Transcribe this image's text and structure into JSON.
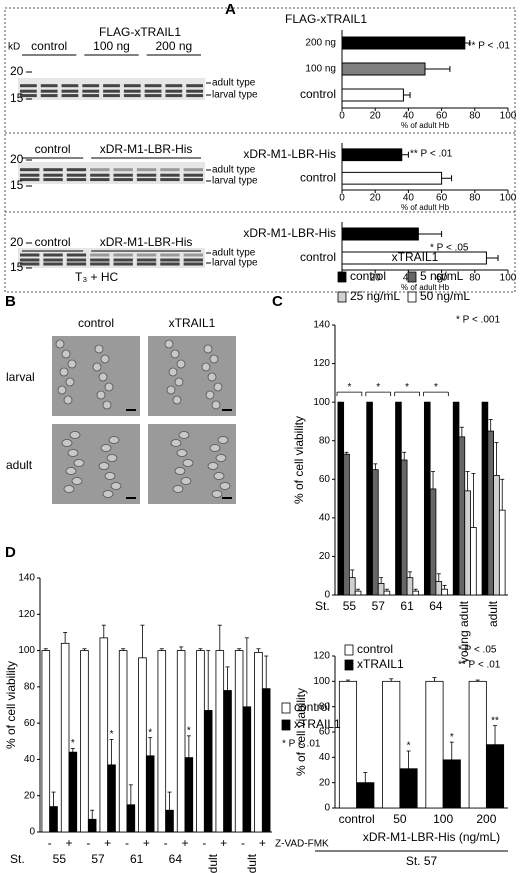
{
  "panel_labels": [
    "A",
    "B",
    "C",
    "D"
  ],
  "gels": [
    {
      "unit": "kD",
      "markers": [
        20,
        15
      ],
      "title": "FLAG-xTRAIL1",
      "lanes": [
        "control",
        "100 ng",
        "200 ng"
      ],
      "bands": [
        "adult type",
        "larval type"
      ]
    },
    {
      "markers": [
        20,
        15
      ],
      "lanes": [
        "control",
        "xDR-M1-LBR-His"
      ],
      "bands": [
        "adult type",
        "larval type"
      ]
    },
    {
      "markers": [
        20,
        15
      ],
      "lanes": [
        "control",
        "xDR-M1-LBR-His"
      ],
      "bands": [
        "adult type",
        "larval type"
      ],
      "condition": "T₃ + HC"
    }
  ],
  "micrographs": {
    "columns": [
      "control",
      "xTRAIL1"
    ],
    "rows": [
      "larval",
      "adult"
    ]
  },
  "chart_data": [
    {
      "type": "hbar",
      "title": "FLAG-xTRAIL1",
      "categories": [
        "control",
        "100 ng",
        "200 ng"
      ],
      "values": [
        37,
        50,
        74
      ],
      "errors": [
        4,
        15,
        3
      ],
      "colors": [
        "#ffffff",
        "#808080",
        "#000000"
      ],
      "xlim": [
        0,
        100
      ],
      "xticks": [
        0,
        20,
        40,
        60,
        80,
        100
      ],
      "xlabel": "% of adult Hb",
      "annotation": "** P < .01"
    },
    {
      "type": "hbar",
      "categories": [
        "control",
        "xDR-M1-LBR-His"
      ],
      "values": [
        60,
        36
      ],
      "errors": [
        6,
        4
      ],
      "colors": [
        "#ffffff",
        "#000000"
      ],
      "xlim": [
        0,
        100
      ],
      "xticks": [
        0,
        20,
        40,
        60,
        80,
        100
      ],
      "xlabel": "% of adult Hb",
      "annotation": "** P < .01"
    },
    {
      "type": "hbar",
      "categories": [
        "control",
        "xDR-M1-LBR-His"
      ],
      "values": [
        87,
        46
      ],
      "errors": [
        7,
        14
      ],
      "colors": [
        "#ffffff",
        "#000000"
      ],
      "xlim": [
        0,
        100
      ],
      "xticks": [
        0,
        20,
        40,
        60,
        80,
        100
      ],
      "xlabel": "% of adult Hb",
      "annotation": "* P < .05"
    },
    {
      "type": "bar",
      "title": "xTRAIL1",
      "categories": [
        "55",
        "57",
        "61",
        "64",
        "young adult",
        "adult"
      ],
      "category_prefix": "St.",
      "ylabel": "% of cell viability",
      "ylim": [
        0,
        140
      ],
      "yticks": [
        0,
        20,
        40,
        60,
        80,
        100,
        120,
        140
      ],
      "annotation": "* P < .001",
      "series": [
        {
          "name": "control",
          "color": "#000000",
          "values": [
            100,
            100,
            100,
            100,
            100,
            100
          ],
          "significance": [
            "*",
            "*",
            "*",
            "*",
            null,
            null
          ]
        },
        {
          "name": "5 ng/mL",
          "color": "#666666",
          "values": [
            73,
            65,
            70,
            55,
            82,
            85
          ],
          "errors": [
            1,
            3,
            4,
            9,
            5,
            6
          ]
        },
        {
          "name": "25 ng/mL",
          "color": "#d0d0d0",
          "values": [
            9,
            6,
            9,
            7,
            54,
            62
          ],
          "errors": [
            4,
            3,
            3,
            4,
            10,
            17
          ]
        },
        {
          "name": "50 ng/mL",
          "color": "#ffffff",
          "values": [
            2,
            2,
            2,
            3,
            35,
            44
          ],
          "errors": [
            1,
            1,
            1,
            2,
            28,
            16
          ]
        }
      ]
    },
    {
      "type": "bar",
      "categories": [
        "control",
        "50",
        "100",
        "200"
      ],
      "xlabel": "xDR-M1-LBR-His (ng/mL)",
      "group_label": "St. 57",
      "ylabel": "% of cell viability",
      "ylim": [
        0,
        120
      ],
      "yticks": [
        0,
        20,
        40,
        60,
        80,
        100,
        120
      ],
      "annotations": [
        "* P < .05",
        "** P < .01"
      ],
      "series": [
        {
          "name": "control",
          "color": "#ffffff",
          "values": [
            100,
            100,
            100,
            100
          ],
          "errors": [
            1,
            2,
            3,
            1
          ]
        },
        {
          "name": "xTRAIL1",
          "color": "#000000",
          "values": [
            20,
            31,
            38,
            50
          ],
          "errors": [
            8,
            14,
            14,
            15
          ],
          "significance": [
            null,
            "*",
            "*",
            "**"
          ]
        }
      ]
    },
    {
      "type": "bar",
      "categories": [
        "55",
        "57",
        "61",
        "64",
        "young adult",
        "adult"
      ],
      "category_prefix": "St.",
      "subcategories": [
        "-",
        "+"
      ],
      "subcategory_label": "Z-VAD-FMK",
      "ylabel": "% of cell viability",
      "ylim": [
        0,
        140
      ],
      "yticks": [
        0,
        20,
        40,
        60,
        80,
        100,
        120,
        140
      ],
      "annotation": "* P < .01",
      "series": [
        {
          "name": "control",
          "color": "#ffffff",
          "values": [
            [
              100,
              104
            ],
            [
              100,
              107
            ],
            [
              100,
              96
            ],
            [
              100,
              100
            ],
            [
              100,
              100
            ],
            [
              100,
              99
            ]
          ],
          "errors": [
            [
              1,
              6
            ],
            [
              1,
              7
            ],
            [
              1,
              18
            ],
            [
              1,
              2
            ],
            [
              1,
              14
            ],
            [
              1,
              2
            ]
          ]
        },
        {
          "name": "xTRAIL1",
          "color": "#000000",
          "values": [
            [
              14,
              44
            ],
            [
              7,
              37
            ],
            [
              15,
              42
            ],
            [
              12,
              41
            ],
            [
              67,
              78
            ],
            [
              69,
              79
            ]
          ],
          "errors": [
            [
              8,
              2
            ],
            [
              5,
              14
            ],
            [
              11,
              10
            ],
            [
              10,
              12
            ],
            [
              33,
              13
            ],
            [
              38,
              18
            ]
          ],
          "significance": [
            [
              null,
              "*"
            ],
            [
              null,
              "*"
            ],
            [
              null,
              "*"
            ],
            [
              null,
              "*"
            ],
            [
              null,
              null
            ],
            [
              null,
              null
            ]
          ]
        }
      ]
    }
  ]
}
